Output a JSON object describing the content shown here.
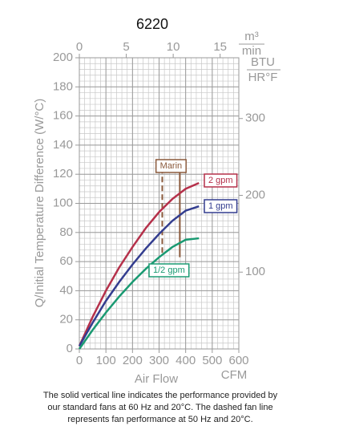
{
  "chart_data": {
    "type": "line",
    "title": "6220",
    "x_label": "Air Flow",
    "x_unit": "CFM",
    "y_label": "Q/Initial Temperature Difference (W/°C)",
    "x2_unit": {
      "numerator": "m³",
      "denominator": "min"
    },
    "y2_unit": {
      "numerator": "BTU",
      "denominator": "HR°F"
    },
    "x": [
      0,
      50,
      100,
      150,
      200,
      250,
      300,
      350,
      400,
      450
    ],
    "series": [
      {
        "name": "2 gpm",
        "color": "#b5304a",
        "values": [
          2,
          22,
          40,
          56,
          70,
          83,
          94,
          103,
          110,
          114
        ]
      },
      {
        "name": "1 gpm",
        "color": "#333d8f",
        "values": [
          2,
          18,
          33,
          46,
          58,
          69,
          79,
          88,
          95,
          98
        ]
      },
      {
        "name": "1/2 gpm",
        "color": "#1a9a72",
        "values": [
          0,
          13,
          25,
          36,
          46,
          55,
          63,
          70,
          75,
          76
        ]
      }
    ],
    "fan_lines": {
      "label": "Marin",
      "color": "#8b5a3c",
      "lines": [
        {
          "x": 312,
          "style": "dashed",
          "ylim": [
            66,
            122
          ]
        },
        {
          "x": 378,
          "style": "solid",
          "ylim": [
            63,
            122
          ]
        }
      ]
    },
    "xlim": [
      0,
      600
    ],
    "xticks": [
      0,
      100,
      200,
      300,
      400,
      500,
      600
    ],
    "ylim": [
      0,
      200
    ],
    "yticks": [
      0,
      20,
      40,
      60,
      80,
      100,
      120,
      140,
      160,
      180,
      200
    ],
    "x2lim": [
      0,
      16.99
    ],
    "x2ticks": [
      0,
      5,
      10,
      15
    ],
    "y2lim": [
      0,
      379.1
    ],
    "y2ticks": [
      100,
      200,
      300
    ],
    "grid": true,
    "minor_grid_step": [
      20,
      4
    ],
    "caption": [
      "The solid vertical line indicates the performance provided by",
      "our standard fans at 60 Hz and 20°C. The dashed fan line",
      "represents fan performance at 50 Hz and 20°C."
    ]
  }
}
